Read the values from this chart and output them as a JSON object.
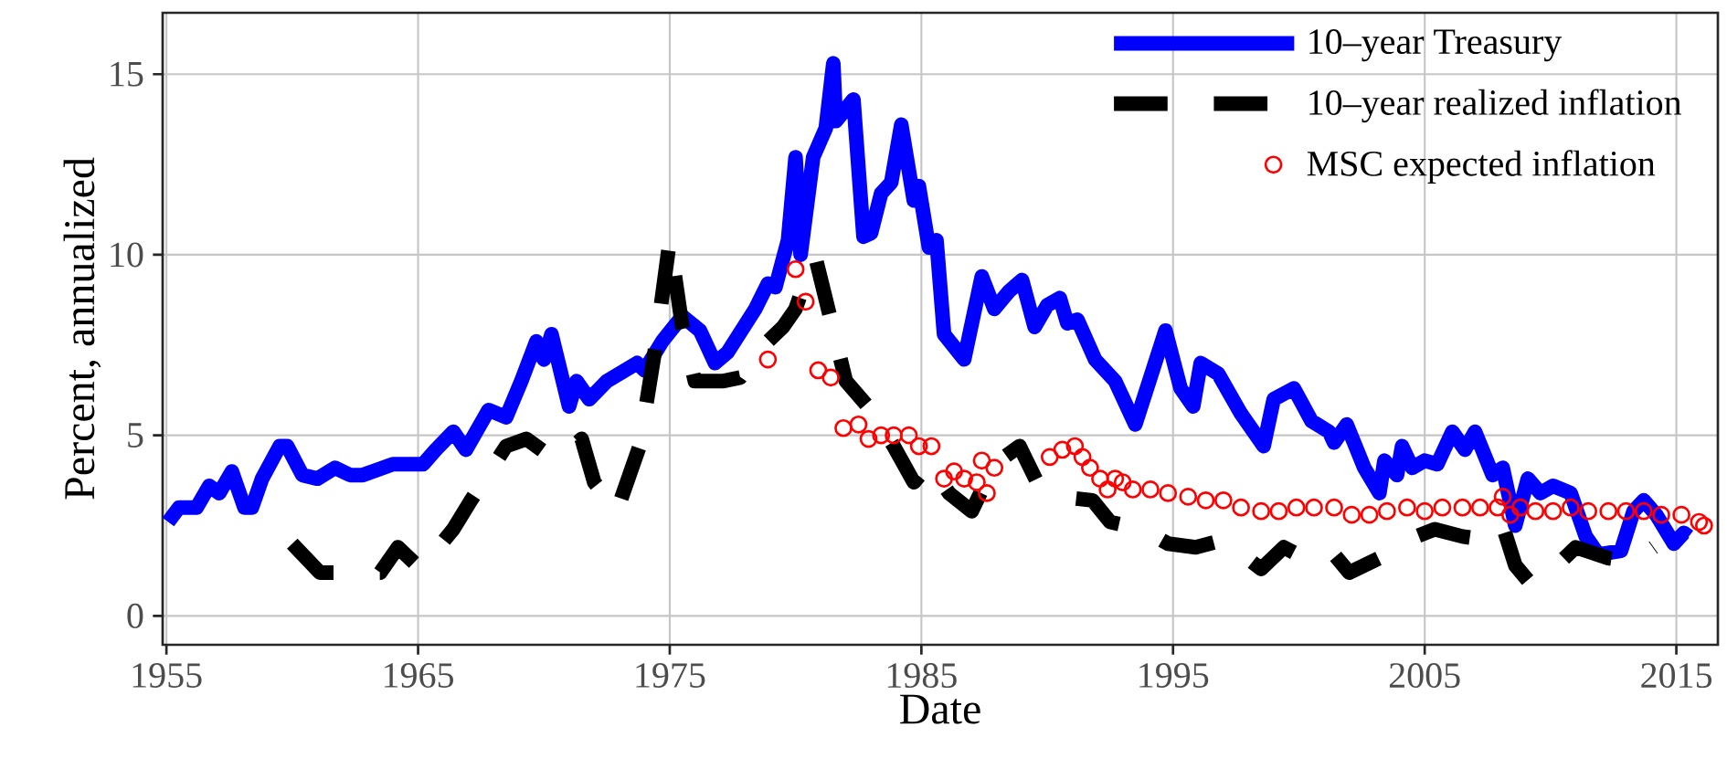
{
  "chart_data": {
    "type": "line",
    "xlabel": "Date",
    "ylabel": "Percent, annualized",
    "xlim": [
      1954.85,
      2016.65
    ],
    "ylim": [
      -0.8,
      16.7
    ],
    "xticks": [
      1955,
      1965,
      1975,
      1985,
      1995,
      2005,
      2015
    ],
    "yticks": [
      0,
      5,
      10,
      15
    ],
    "grid": true,
    "legend": "top right",
    "series": [
      {
        "name": "10–year Treasury",
        "line_style": "solid",
        "color": "#0000ff",
        "x": [
          1955.07,
          1955.5,
          1956.2,
          1956.7,
          1957.1,
          1957.6,
          1958.1,
          1958.4,
          1958.8,
          1959.5,
          1959.8,
          1960.4,
          1961.0,
          1961.7,
          1962.3,
          1962.8,
          1964.0,
          1965.2,
          1965.7,
          1966.4,
          1966.9,
          1967.8,
          1968.5,
          1969.1,
          1969.7,
          1970.0,
          1970.3,
          1971.0,
          1971.3,
          1971.8,
          1972.5,
          1973.7,
          1974.0,
          1974.7,
          1975.5,
          1976.2,
          1976.8,
          1977.3,
          1978.4,
          1978.9,
          1979.2,
          1979.7,
          1980.0,
          1980.2,
          1980.7,
          1981.2,
          1981.5,
          1981.6,
          1982.3,
          1982.7,
          1983.0,
          1983.4,
          1983.8,
          1984.2,
          1984.7,
          1984.9,
          1985.3,
          1985.6,
          1985.9,
          1986.7,
          1987.4,
          1987.9,
          1988.5,
          1989.0,
          1989.5,
          1990.0,
          1990.5,
          1990.8,
          1991.2,
          1991.9,
          1992.7,
          1993.5,
          1994.7,
          1995.3,
          1995.8,
          1996.1,
          1996.8,
          1997.7,
          1998.6,
          1999.0,
          1999.8,
          2000.5,
          2001.2,
          2001.4,
          2001.9,
          2002.6,
          2003.2,
          2003.4,
          2003.9,
          2004.1,
          2004.5,
          2005.0,
          2005.5,
          2006.1,
          2006.6,
          2007.0,
          2007.7,
          2008.1,
          2008.6,
          2009.1,
          2009.6,
          2010.1,
          2010.8,
          2011.4,
          2011.9,
          2012.8,
          2013.3,
          2013.7,
          2014.2,
          2014.9,
          2015.3,
          2015.5
        ],
        "values": [
          2.6,
          3.0,
          3.0,
          3.6,
          3.4,
          4.0,
          3.0,
          3.0,
          3.8,
          4.7,
          4.7,
          3.9,
          3.8,
          4.1,
          3.9,
          3.9,
          4.2,
          4.2,
          4.6,
          5.1,
          4.6,
          5.7,
          5.5,
          6.5,
          7.6,
          7.1,
          7.8,
          5.8,
          6.5,
          6.0,
          6.5,
          7.0,
          6.8,
          7.6,
          8.3,
          7.9,
          7.0,
          7.3,
          8.5,
          9.2,
          9.1,
          10.4,
          12.7,
          10.0,
          12.7,
          13.5,
          15.3,
          13.7,
          14.3,
          10.5,
          10.6,
          11.7,
          12.0,
          13.6,
          11.5,
          11.9,
          10.2,
          10.4,
          7.8,
          7.1,
          9.4,
          8.5,
          9.0,
          9.3,
          8.0,
          8.6,
          8.8,
          8.1,
          8.2,
          7.1,
          6.5,
          5.3,
          7.9,
          6.3,
          5.8,
          7.0,
          6.7,
          5.6,
          4.7,
          6.0,
          6.3,
          5.4,
          5.1,
          4.8,
          5.3,
          4.1,
          3.4,
          4.3,
          3.9,
          4.7,
          4.1,
          4.3,
          4.2,
          5.1,
          4.6,
          5.1,
          3.9,
          4.1,
          2.5,
          3.8,
          3.4,
          3.6,
          3.4,
          2.2,
          1.7,
          1.8,
          2.9,
          3.2,
          2.8,
          2.0,
          2.3,
          2.2
        ]
      },
      {
        "name": "10–year realized inflation",
        "line_style": "dashed",
        "color": "#000000",
        "x": [
          1960.0,
          1961.1,
          1963.5,
          1964.2,
          1965.1,
          1966.4,
          1967.1,
          1968.5,
          1969.3,
          1970.5,
          1971.5,
          1972.0,
          1972.9,
          1973.8,
          1974.4,
          1975.0,
          1975.5,
          1976.0,
          1977.1,
          1977.8,
          1978.6,
          1979.5,
          1980.0,
          1980.3,
          1980.8,
          1981.4,
          1982.0,
          1983.0,
          1983.9,
          1984.7,
          1985.3,
          1986.1,
          1987.0,
          1987.9,
          1988.9,
          1989.6,
          1990.5,
          1991.8,
          1992.5,
          1993.8,
          1994.8,
          1995.9,
          1997.0,
          1998.5,
          1999.4,
          2000.5,
          2001.4,
          2002.0,
          2003.2,
          2004.3,
          2005.4,
          2006.5,
          2007.5,
          2008.1,
          2008.6,
          2009.2,
          2010.1,
          2011.0,
          2012.3,
          2013.3,
          2014.1
        ],
        "values": [
          2.0,
          1.2,
          1.2,
          1.9,
          1.3,
          2.4,
          3.2,
          4.7,
          4.9,
          4.3,
          4.9,
          3.7,
          2.9,
          4.7,
          7.3,
          10.4,
          8.0,
          6.5,
          6.5,
          6.6,
          7.4,
          8.0,
          8.5,
          9.1,
          9.9,
          8.2,
          6.5,
          5.7,
          4.7,
          3.7,
          4.2,
          3.4,
          2.9,
          4.2,
          4.7,
          3.7,
          3.3,
          3.2,
          2.6,
          2.4,
          2.0,
          1.9,
          2.1,
          1.3,
          1.9,
          1.5,
          1.7,
          1.2,
          1.6,
          2.1,
          2.4,
          2.2,
          2.1,
          2.5,
          1.4,
          0.9,
          1.3,
          1.9,
          1.6,
          1.5,
          1.9
        ]
      },
      {
        "name": "MSC expected inflation",
        "type": "scatter",
        "marker": "circle",
        "color": "#ff0000",
        "x": [
          1978.9,
          1980.0,
          1980.4,
          1980.9,
          1981.4,
          1981.9,
          1982.5,
          1982.9,
          1983.4,
          1983.9,
          1984.5,
          1984.9,
          1985.4,
          1985.9,
          1986.3,
          1986.7,
          1987.2,
          1987.4,
          1987.6,
          1987.9,
          1990.1,
          1990.6,
          1991.1,
          1991.4,
          1991.7,
          1992.1,
          1992.4,
          1992.7,
          1993.0,
          1993.4,
          1994.1,
          1994.8,
          1995.6,
          1996.3,
          1997.0,
          1997.7,
          1998.5,
          1999.2,
          1999.9,
          2000.6,
          2001.4,
          2002.1,
          2002.8,
          2003.5,
          2004.3,
          2005.0,
          2005.7,
          2006.5,
          2007.2,
          2007.9,
          2008.1,
          2008.4,
          2008.8,
          2009.4,
          2010.1,
          2010.8,
          2011.5,
          2012.3,
          2013.0,
          2013.7,
          2014.4,
          2015.2,
          2015.9,
          2016.1
        ],
        "values": [
          7.1,
          9.6,
          8.7,
          6.8,
          6.6,
          5.2,
          5.3,
          4.9,
          5.0,
          5.0,
          5.0,
          4.7,
          4.7,
          3.8,
          4.0,
          3.8,
          3.7,
          4.3,
          3.4,
          4.1,
          4.4,
          4.6,
          4.7,
          4.4,
          4.1,
          3.8,
          3.5,
          3.8,
          3.7,
          3.5,
          3.5,
          3.4,
          3.3,
          3.2,
          3.2,
          3.0,
          2.9,
          2.9,
          3.0,
          3.0,
          3.0,
          2.8,
          2.8,
          2.9,
          3.0,
          2.9,
          3.0,
          3.0,
          3.0,
          3.0,
          3.3,
          2.8,
          3.0,
          2.9,
          2.9,
          3.0,
          2.9,
          2.9,
          2.9,
          2.9,
          2.8,
          2.8,
          2.6,
          2.5
        ]
      }
    ]
  }
}
